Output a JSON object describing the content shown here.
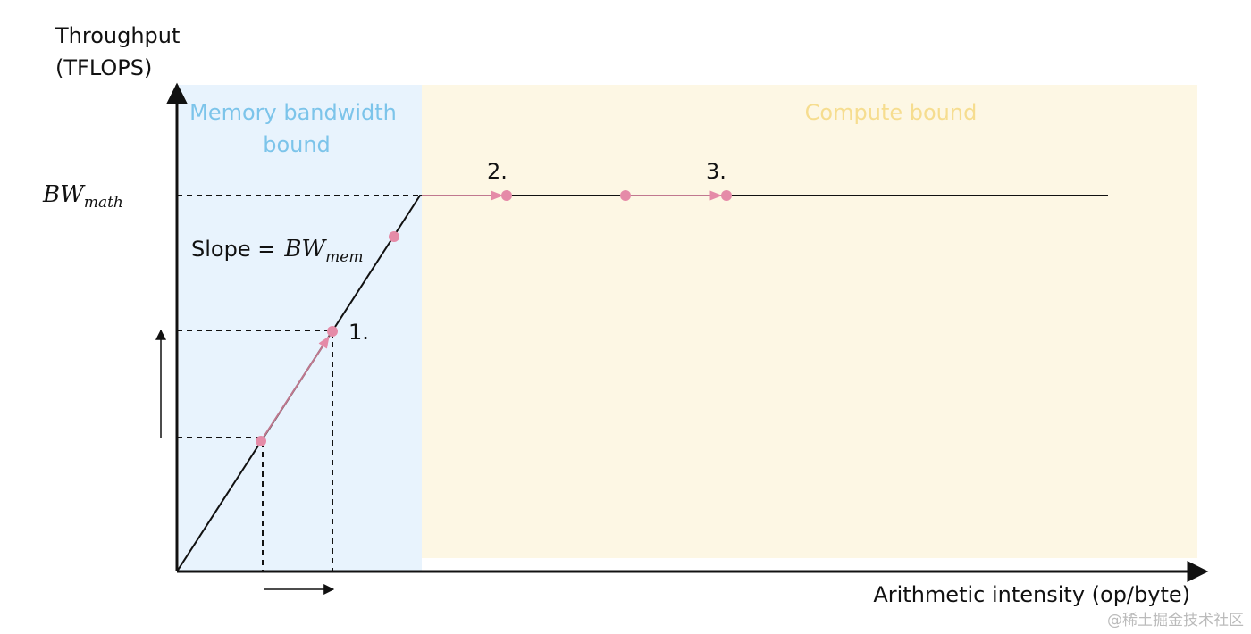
{
  "y_axis": {
    "label_lines": [
      "Throughput",
      "(TFLOPS)"
    ]
  },
  "x_axis": {
    "label": "Arithmetic intensity (op/byte)"
  },
  "regions": {
    "memory": {
      "label_lines": [
        "Memory bandwidth",
        "bound"
      ]
    },
    "compute": {
      "label": "Compute bound"
    }
  },
  "roof": {
    "symbol": "BW",
    "subscript": "math"
  },
  "slope": {
    "text": "Slope =",
    "symbol": "BW",
    "subscript": "mem"
  },
  "points": [
    "1.",
    "2.",
    "3."
  ],
  "watermark": "@稀土掘金技术社区"
}
